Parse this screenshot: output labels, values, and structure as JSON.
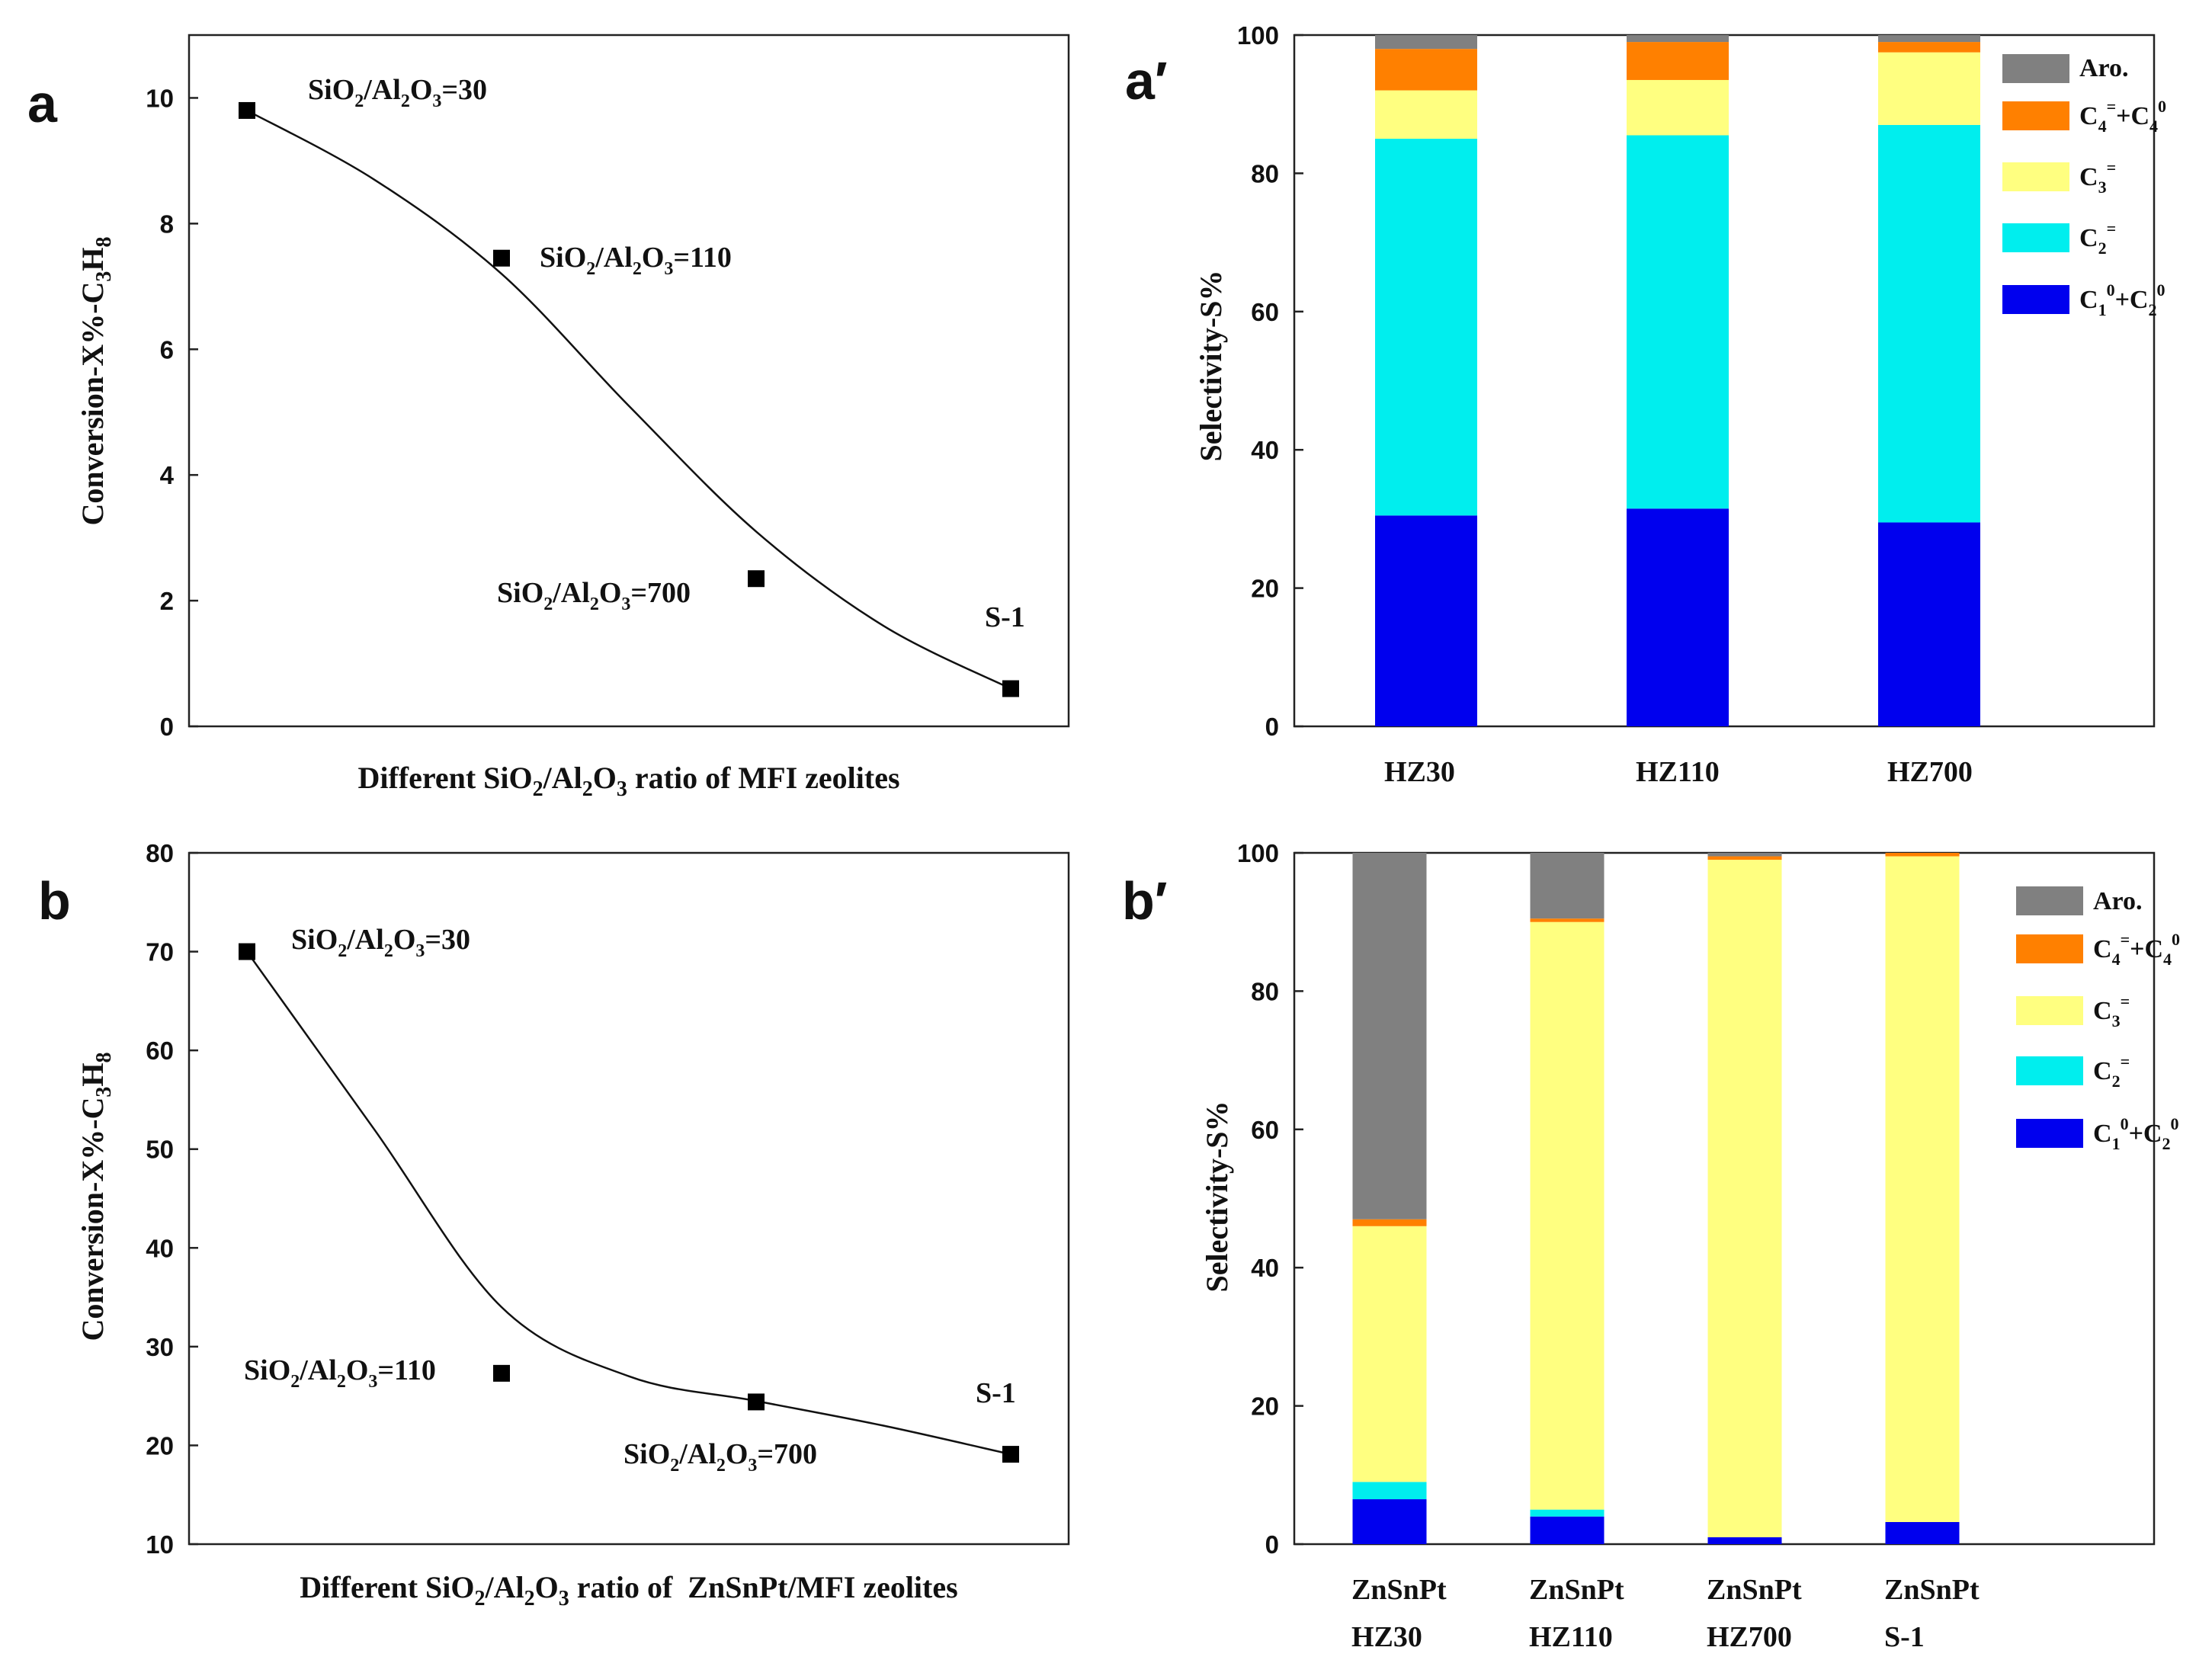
{
  "chart_data": [
    {
      "panel": "a",
      "type": "scatter",
      "xlabel": "Different SiO2/Al2O3 ratio of MFI zeolites",
      "ylabel": "Conversion-X%-C3H8",
      "ylim": [
        0,
        11
      ],
      "yticks": [
        0,
        2,
        4,
        6,
        8,
        10
      ],
      "x": [
        1,
        2,
        3,
        4
      ],
      "values": [
        9.8,
        7.45,
        2.35,
        0.6
      ],
      "labels": [
        "SiO2/Al2O3=30",
        "SiO2/Al2O3=110",
        "SiO2/Al2O3=700",
        "S-1"
      ],
      "curve": [
        [
          1,
          9.8
        ],
        [
          1.5,
          8.7
        ],
        [
          2,
          7.2
        ],
        [
          2.5,
          5.1
        ],
        [
          3,
          3.1
        ],
        [
          3.5,
          1.6
        ],
        [
          4,
          0.6
        ]
      ]
    },
    {
      "panel": "a′",
      "type": "stacked-bar",
      "ylabel": "Selectivity-S%",
      "ylim": [
        0,
        100
      ],
      "yticks": [
        0,
        20,
        40,
        60,
        80,
        100
      ],
      "categories": [
        [
          "HZ30"
        ],
        [
          "HZ110"
        ],
        [
          "HZ700"
        ]
      ],
      "series": [
        {
          "name": "C1⁰+C2⁰",
          "color": "#0000ee",
          "values": [
            30.5,
            31.5,
            29.5
          ]
        },
        {
          "name": "C2⁼",
          "color": "#00eeee",
          "values": [
            54.5,
            54,
            57.5
          ]
        },
        {
          "name": "C3⁼",
          "color": "#ffff80",
          "values": [
            7,
            8,
            10.5
          ]
        },
        {
          "name": "C4⁼+C4⁰",
          "color": "#ff8000",
          "values": [
            6,
            5.5,
            1.5
          ]
        },
        {
          "name": "Aro.",
          "color": "#808080",
          "values": [
            2,
            1,
            1
          ]
        }
      ]
    },
    {
      "panel": "b",
      "type": "scatter",
      "xlabel": "Different SiO2/Al2O3 ratio of  ZnSnPt/MFI zeolites",
      "ylabel": "Conversion-X%-C3H8",
      "ylim": [
        10,
        80
      ],
      "yticks": [
        10,
        20,
        30,
        40,
        50,
        60,
        70,
        80
      ],
      "x": [
        1,
        2,
        3,
        4
      ],
      "values": [
        70,
        27.3,
        24.4,
        19.1
      ],
      "labels": [
        "SiO2/Al2O3=30",
        "SiO2/Al2O3=110",
        "SiO2/Al2O3=700",
        "S-1"
      ],
      "curve": [
        [
          1,
          70
        ],
        [
          1.5,
          52
        ],
        [
          2,
          34
        ],
        [
          2.5,
          27
        ],
        [
          3,
          24.5
        ],
        [
          3.5,
          22
        ],
        [
          4,
          19.1
        ]
      ]
    },
    {
      "panel": "b′",
      "type": "stacked-bar",
      "ylabel": "Selectivity-S%",
      "ylim": [
        0,
        100
      ],
      "yticks": [
        0,
        20,
        40,
        60,
        80,
        100
      ],
      "categories": [
        [
          "ZnSnPt",
          "HZ30"
        ],
        [
          "ZnSnPt",
          "HZ110"
        ],
        [
          "ZnSnPt",
          "HZ700"
        ],
        [
          "ZnSnPt",
          "S-1"
        ]
      ],
      "series": [
        {
          "name": "C1⁰+C2⁰",
          "color": "#0000ee",
          "values": [
            6.5,
            4,
            1,
            3.2
          ]
        },
        {
          "name": "C2⁼",
          "color": "#00eeee",
          "values": [
            2.5,
            1,
            0,
            0
          ]
        },
        {
          "name": "C3⁼",
          "color": "#ffff80",
          "values": [
            37,
            85,
            98,
            96.3
          ]
        },
        {
          "name": "C4⁼+C4⁰",
          "color": "#ff8000",
          "values": [
            1,
            0.5,
            0.5,
            0.5
          ]
        },
        {
          "name": "Aro.",
          "color": "#808080",
          "values": [
            53,
            9.5,
            0.5,
            0
          ]
        }
      ]
    }
  ]
}
